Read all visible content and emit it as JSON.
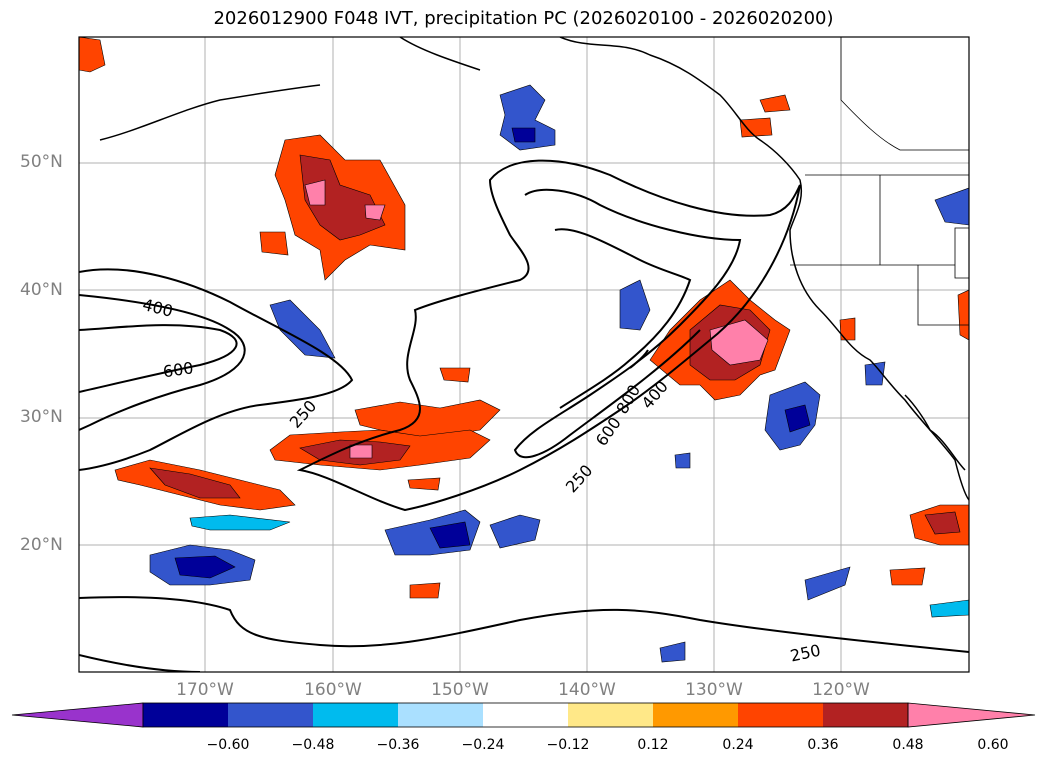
{
  "title": "2026012900 F048 IVT, precipitation PC (2026020100 - 2026020200)",
  "lat_labels": [
    "50°N",
    "40°N",
    "30°N",
    "20°N"
  ],
  "lon_labels": [
    "170°W",
    "160°W",
    "150°W",
    "140°W",
    "130°W",
    "120°W"
  ],
  "contour_labels": [
    "400",
    "600",
    "250",
    "800",
    "600",
    "400",
    "250",
    "250"
  ],
  "colorbar": {
    "colors": [
      "#9933cc",
      "#000099",
      "#3355cc",
      "#00bbee",
      "#aae0ff",
      "#ffffff",
      "#ffe888",
      "#ff9900",
      "#ff4400",
      "#b22222",
      "#ff80aa"
    ],
    "tick_labels": [
      "−0.60",
      "−0.48",
      "−0.36",
      "−0.24",
      "−0.12",
      "0.12",
      "0.24",
      "0.36",
      "0.48",
      "0.60"
    ]
  }
}
